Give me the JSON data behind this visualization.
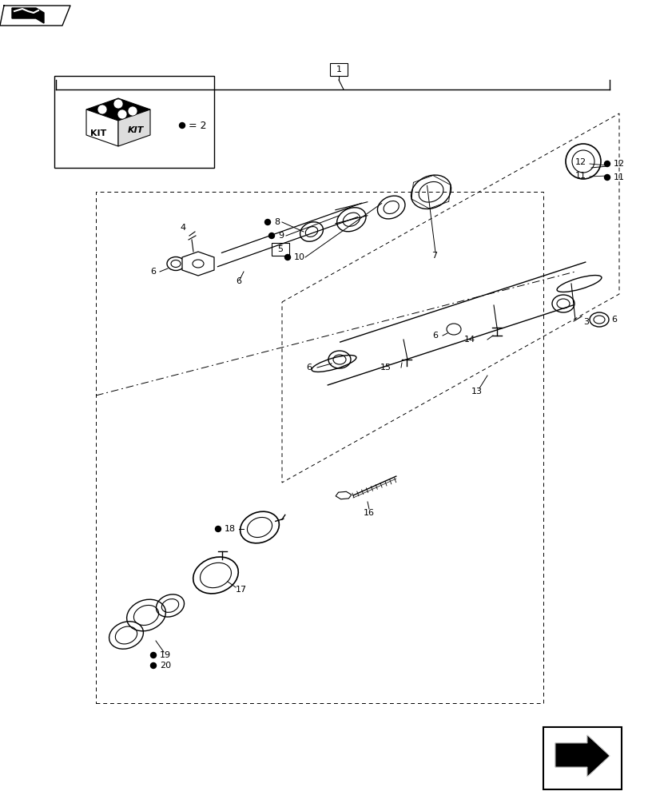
{
  "bg_color": "#ffffff",
  "line_color": "#000000",
  "fig_width": 8.12,
  "fig_height": 10.0,
  "dpi": 100,
  "parts_count": 20
}
